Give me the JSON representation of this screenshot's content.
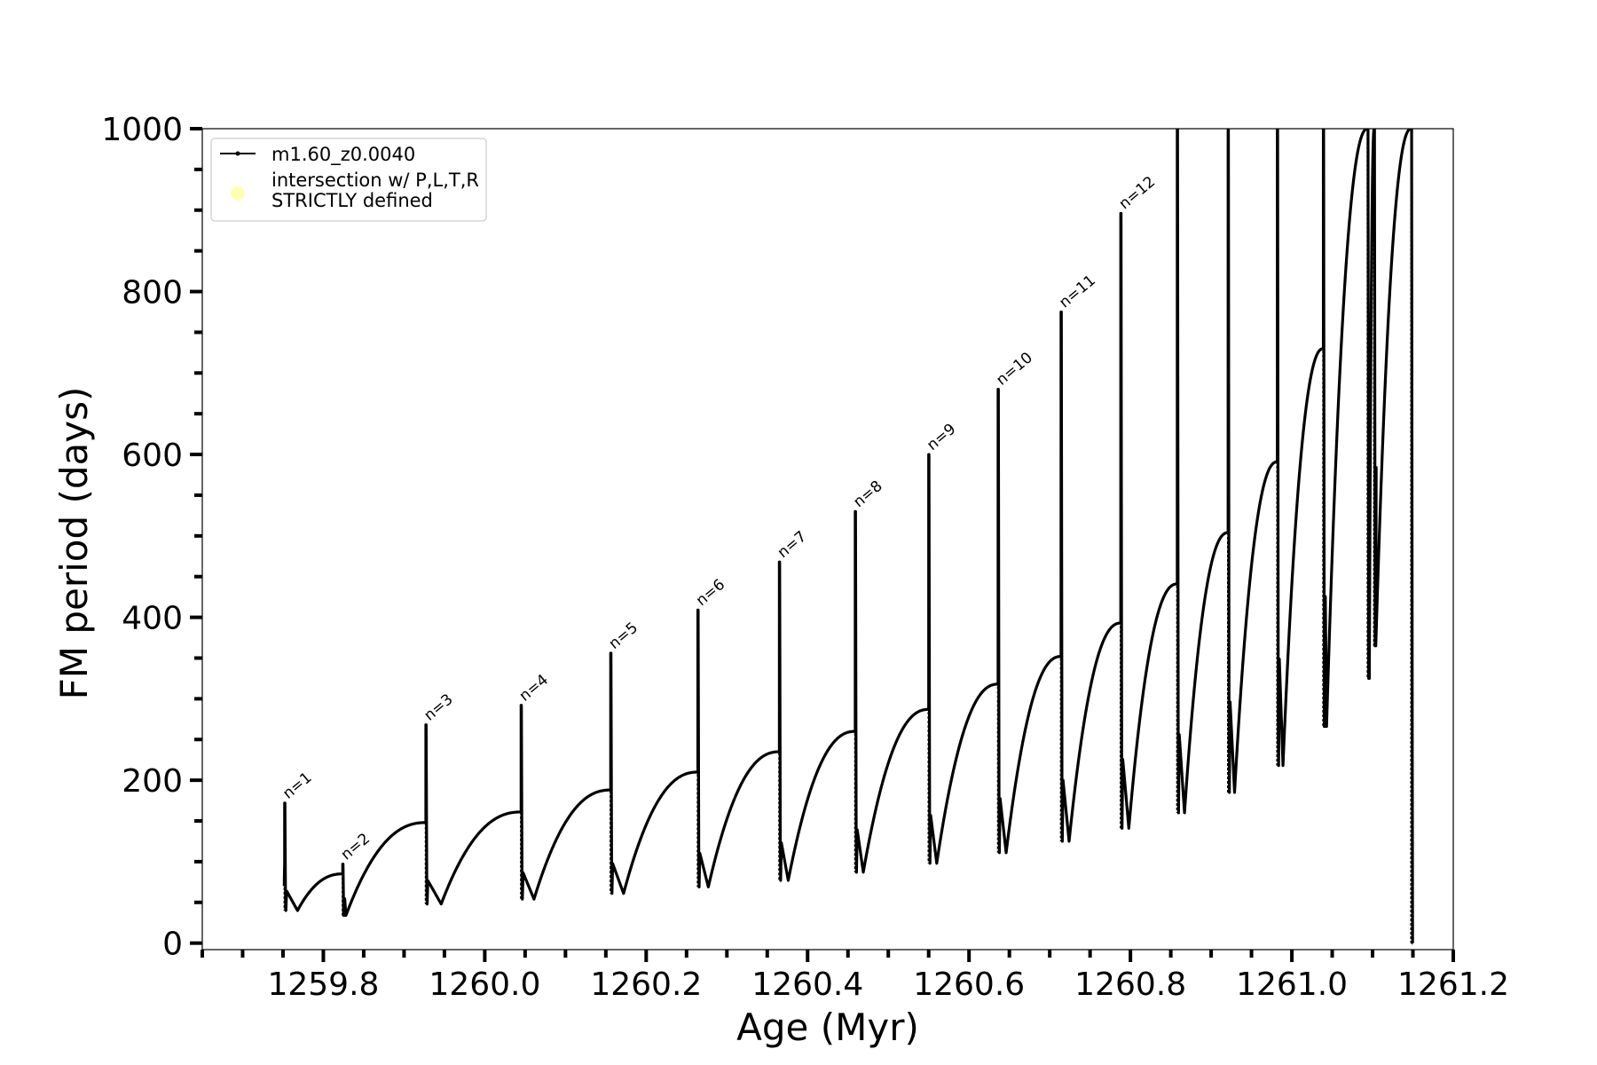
{
  "chart_data": {
    "type": "line",
    "xlabel": "Age (Myr)",
    "ylabel": "FM period (days)",
    "xlim": [
      1259.65,
      1261.2
    ],
    "ylim": [
      -8,
      1000
    ],
    "x_ticks": [
      {
        "value": 1259.8,
        "label": "1259.8"
      },
      {
        "value": 1260.0,
        "label": "1260.0"
      },
      {
        "value": 1260.2,
        "label": "1260.2"
      },
      {
        "value": 1260.4,
        "label": "1260.4"
      },
      {
        "value": 1260.6,
        "label": "1260.6"
      },
      {
        "value": 1260.8,
        "label": "1260.8"
      },
      {
        "value": 1261.0,
        "label": "1261.0"
      },
      {
        "value": 1261.2,
        "label": "1261.2"
      }
    ],
    "x_minor_step": 0.05,
    "y_ticks": [
      {
        "value": 0,
        "label": "0"
      },
      {
        "value": 200,
        "label": "200"
      },
      {
        "value": 400,
        "label": "400"
      },
      {
        "value": 600,
        "label": "600"
      },
      {
        "value": 800,
        "label": "800"
      },
      {
        "value": 1000,
        "label": "1000"
      }
    ],
    "y_minor_step": 50,
    "grid": false,
    "legend": {
      "position": "upper-left",
      "entries": [
        {
          "label": "m1.60_z0.0040",
          "marker": "line-dot",
          "color": "#000000"
        },
        {
          "label": "intersection w/ P,L,T,R\nSTRICTLY defined",
          "marker": "circle",
          "color": "#ffffb3"
        }
      ]
    },
    "series_name": "m1.60_z0.0040",
    "series_color": "#000000",
    "pulses": [
      {
        "n": 1,
        "t": 1259.752,
        "pre_peak": 100,
        "spike": 172,
        "trough": 40,
        "trough_t": 1259.768
      },
      {
        "n": 2,
        "t": 1259.824,
        "pre_peak": 85,
        "spike": 97,
        "trough": 34,
        "trough_t": 1259.828
      },
      {
        "n": 3,
        "t": 1259.927,
        "pre_peak": 148,
        "spike": 268,
        "trough": 48,
        "trough_t": 1259.946
      },
      {
        "n": 4,
        "t": 1260.045,
        "pre_peak": 161,
        "spike": 292,
        "trough": 54,
        "trough_t": 1260.061
      },
      {
        "n": 5,
        "t": 1260.156,
        "pre_peak": 188,
        "spike": 356,
        "trough": 61,
        "trough_t": 1260.172
      },
      {
        "n": 6,
        "t": 1260.264,
        "pre_peak": 210,
        "spike": 409,
        "trough": 69,
        "trough_t": 1260.277
      },
      {
        "n": 7,
        "t": 1260.365,
        "pre_peak": 235,
        "spike": 468,
        "trough": 77,
        "trough_t": 1260.376
      },
      {
        "n": 8,
        "t": 1260.459,
        "pre_peak": 260,
        "spike": 530,
        "trough": 87,
        "trough_t": 1260.469
      },
      {
        "n": 9,
        "t": 1260.55,
        "pre_peak": 287,
        "spike": 600,
        "trough": 98,
        "trough_t": 1260.56
      },
      {
        "n": 10,
        "t": 1260.636,
        "pre_peak": 318,
        "spike": 680,
        "trough": 111,
        "trough_t": 1260.646
      },
      {
        "n": 11,
        "t": 1260.714,
        "pre_peak": 352,
        "spike": 775,
        "trough": 125,
        "trough_t": 1260.724
      },
      {
        "n": 12,
        "t": 1260.788,
        "pre_peak": 393,
        "spike": 896,
        "trough": 141,
        "trough_t": 1260.798
      },
      {
        "t": 1260.858,
        "pre_peak": 441,
        "spike": 1000,
        "trough": 160,
        "trough_t": 1260.867
      },
      {
        "t": 1260.921,
        "pre_peak": 504,
        "spike": 1000,
        "trough": 185,
        "trough_t": 1260.929
      },
      {
        "t": 1260.982,
        "pre_peak": 591,
        "spike": 1000,
        "trough": 218,
        "trough_t": 1260.989
      },
      {
        "t": 1261.039,
        "pre_peak": 730,
        "spike": 1000,
        "trough": 266,
        "trough_t": 1261.043
      },
      {
        "t": 1261.094,
        "pre_peak": 1000,
        "spike": 1000,
        "trough": 325,
        "trough_t": 1261.096
      },
      {
        "t": 1261.102,
        "pre_peak": 1000,
        "spike": 1000,
        "trough": 365,
        "trough_t": 1261.104
      },
      {
        "t": 1261.148,
        "pre_peak": 1000,
        "spike": 1000,
        "trough": 0,
        "trough_t": 1261.148
      }
    ]
  }
}
